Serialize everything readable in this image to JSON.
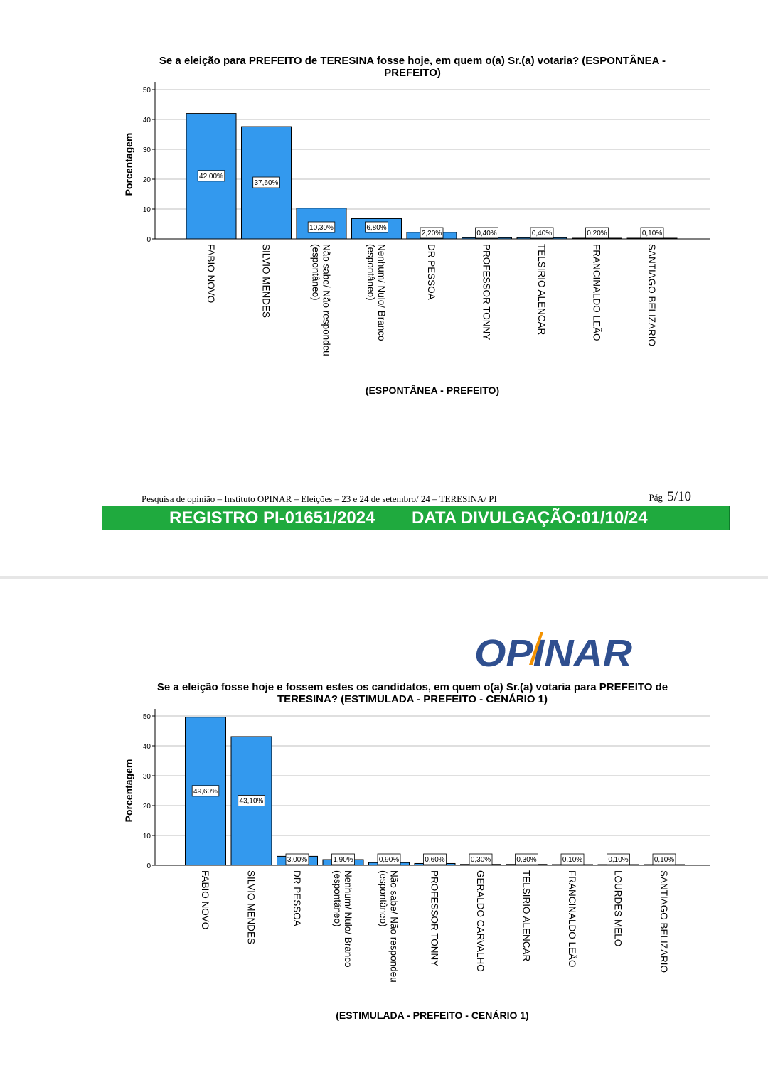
{
  "page1": {
    "footer": {
      "source": "Pesquisa de opinião – Instituto OPINAR – Eleições – 23 e  24 de setembro/ 24 – TERESINA/ PI",
      "page_prefix": "Pág",
      "page_number": "5/10"
    },
    "banner": {
      "registro": "REGISTRO PI-01651/2024",
      "data": "DATA DIVULGAÇÃO:01/10/24"
    }
  },
  "logo": {
    "text": "OPINAR",
    "colors": {
      "primary": "#2f4f8f",
      "accent": "#f39200"
    }
  },
  "colors": {
    "bar": "#3399ee",
    "bar_stroke": "#000000",
    "grid": "#bfbfbf",
    "banner": "#1faa3e"
  },
  "chart_data": [
    {
      "type": "bar",
      "title_lines": [
        "Se a eleição para PREFEITO de TERESINA fosse hoje, em quem o(a) Sr.(a) votaria? (ESPONTÂNEA  -",
        "PREFEITO)"
      ],
      "xlabel": "(ESPONTÂNEA  - PREFEITO)",
      "ylabel": "Porcentagem",
      "ylim": [
        0,
        50
      ],
      "yticks": [
        "0",
        "10",
        "20",
        "30",
        "40",
        "50"
      ],
      "grid": true,
      "categories": [
        [
          "FABIO NOVO"
        ],
        [
          "SILVIO MENDES"
        ],
        [
          "Não sabe/ Não respondeu",
          "(espontâneo)"
        ],
        [
          "Nenhum/ Nulo/ Branco",
          "(espontâneo)"
        ],
        [
          "DR PESSOA"
        ],
        [
          "PROFESSOR TONNY"
        ],
        [
          "TELSIRIO ALENCAR"
        ],
        [
          "FRANCINALDO LEÃO"
        ],
        [
          "SANTIAGO BELIZARIO"
        ]
      ],
      "values": [
        42.0,
        37.6,
        10.3,
        6.8,
        2.2,
        0.4,
        0.4,
        0.2,
        0.1
      ],
      "data_labels": [
        "42,00%",
        "37,60%",
        "10,30%",
        "6,80%",
        "2,20%",
        "0,40%",
        "0,40%",
        "0,20%",
        "0,10%"
      ]
    },
    {
      "type": "bar",
      "title_lines": [
        "Se a eleição fosse hoje e fossem estes os candidatos, em quem o(a) Sr.(a) votaria para PREFEITO de",
        "TERESINA? (ESTIMULADA - PREFEITO - CENÁRIO 1)"
      ],
      "xlabel": "(ESTIMULADA - PREFEITO - CENÁRIO 1)",
      "ylabel": "Porcentagem",
      "ylim": [
        0,
        50
      ],
      "yticks": [
        "0",
        "10",
        "20",
        "30",
        "40",
        "50"
      ],
      "grid": true,
      "categories": [
        [
          "FABIO NOVO"
        ],
        [
          "SILVIO MENDES"
        ],
        [
          "DR PESSOA"
        ],
        [
          "Nenhum/ Nulo/ Branco",
          "(espontâneo)"
        ],
        [
          "Não sabe/ Não respondeu",
          "(espontâneo)"
        ],
        [
          "PROFESSOR TONNY"
        ],
        [
          "GERALDO CARVALHO"
        ],
        [
          "TELSIRIO ALENCAR"
        ],
        [
          "FRANCINALDO LEÃO"
        ],
        [
          "LOURDES MELO"
        ],
        [
          "SANTIAGO BELIZARIO"
        ]
      ],
      "values": [
        49.6,
        43.1,
        3.0,
        1.9,
        0.9,
        0.6,
        0.3,
        0.3,
        0.1,
        0.1,
        0.1
      ],
      "data_labels": [
        "49,60%",
        "43,10%",
        "3,00%",
        "1,90%",
        "0,90%",
        "0,60%",
        "0,30%",
        "0,30%",
        "0,10%",
        "0,10%",
        "0,10%"
      ]
    }
  ]
}
